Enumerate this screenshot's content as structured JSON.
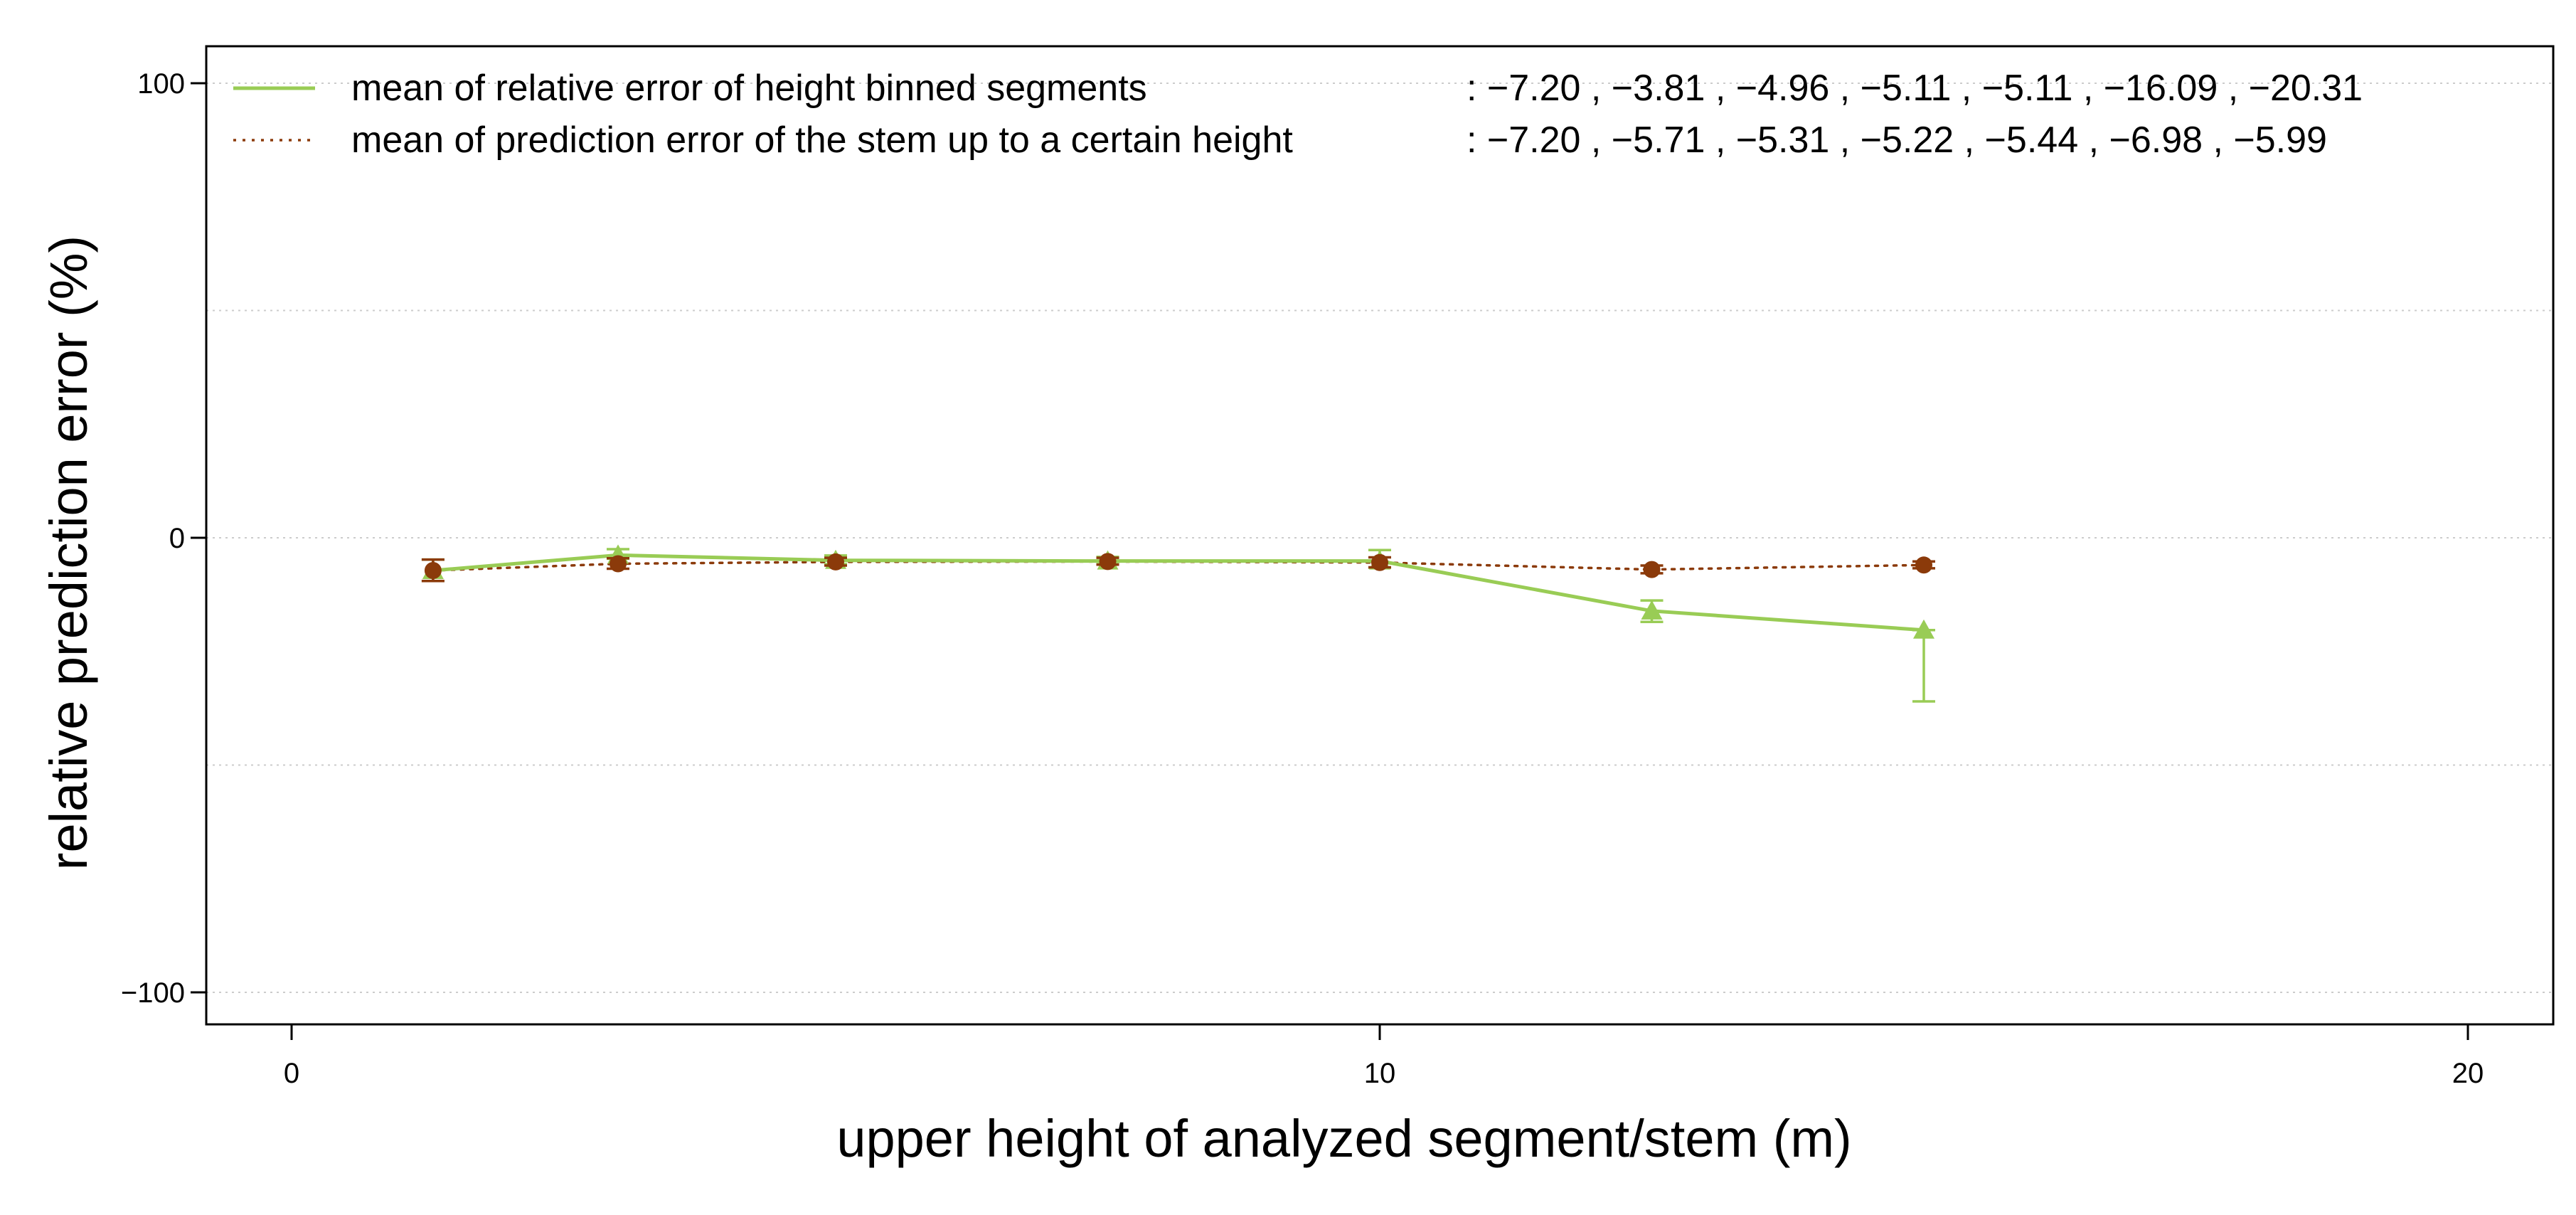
{
  "chart_data": {
    "type": "line",
    "title": "",
    "xlabel": "upper height of analyzed segment/stem (m)",
    "ylabel": "relative prediction error (%)",
    "xlim": [
      -0.8,
      20.8
    ],
    "ylim": [
      -108,
      108
    ],
    "x_ticks": [
      0,
      10,
      20
    ],
    "y_ticks": [
      100,
      0,
      -100
    ],
    "grid_y": [
      100,
      50,
      0,
      -50,
      -100
    ],
    "legend_position": "top-left",
    "series": [
      {
        "name": "mean of relative error of height binned segments",
        "values_text": ": −7.20 , −3.81 , −4.96 , −5.11 , −5.11 , −16.09 , −20.31",
        "color": "#99CC55",
        "line_style": "solid",
        "marker": "triangle",
        "x": [
          1.3,
          3.0,
          5.0,
          7.5,
          10.0,
          12.5,
          15.0
        ],
        "values": [
          -7.2,
          -3.81,
          -4.96,
          -5.11,
          -5.11,
          -16.09,
          -20.31
        ],
        "error_low": [
          -9.5,
          -4.6,
          -5.8,
          -5.8,
          -6.6,
          -18.5,
          -36.0
        ],
        "error_high": [
          -4.8,
          -2.5,
          -3.9,
          -4.2,
          -2.7,
          -13.8,
          -20.31
        ]
      },
      {
        "name": "mean of prediction error of the stem up to a certain height",
        "values_text": ": −7.20 , −5.71 , −5.31 , −5.22 , −5.44 , −6.98  , −5.99",
        "color": "#8B3A0A",
        "line_style": "dotted",
        "marker": "circle",
        "x": [
          1.3,
          3.0,
          5.0,
          7.5,
          10.0,
          12.5,
          15.0
        ],
        "values": [
          -7.2,
          -5.71,
          -5.31,
          -5.22,
          -5.44,
          -6.98,
          -5.99
        ],
        "error_low": [
          -9.5,
          -6.8,
          -6.1,
          -5.9,
          -6.5,
          -7.8,
          -6.7
        ],
        "error_high": [
          -4.8,
          -4.5,
          -4.4,
          -4.4,
          -4.3,
          -6.1,
          -5.2
        ]
      }
    ]
  }
}
